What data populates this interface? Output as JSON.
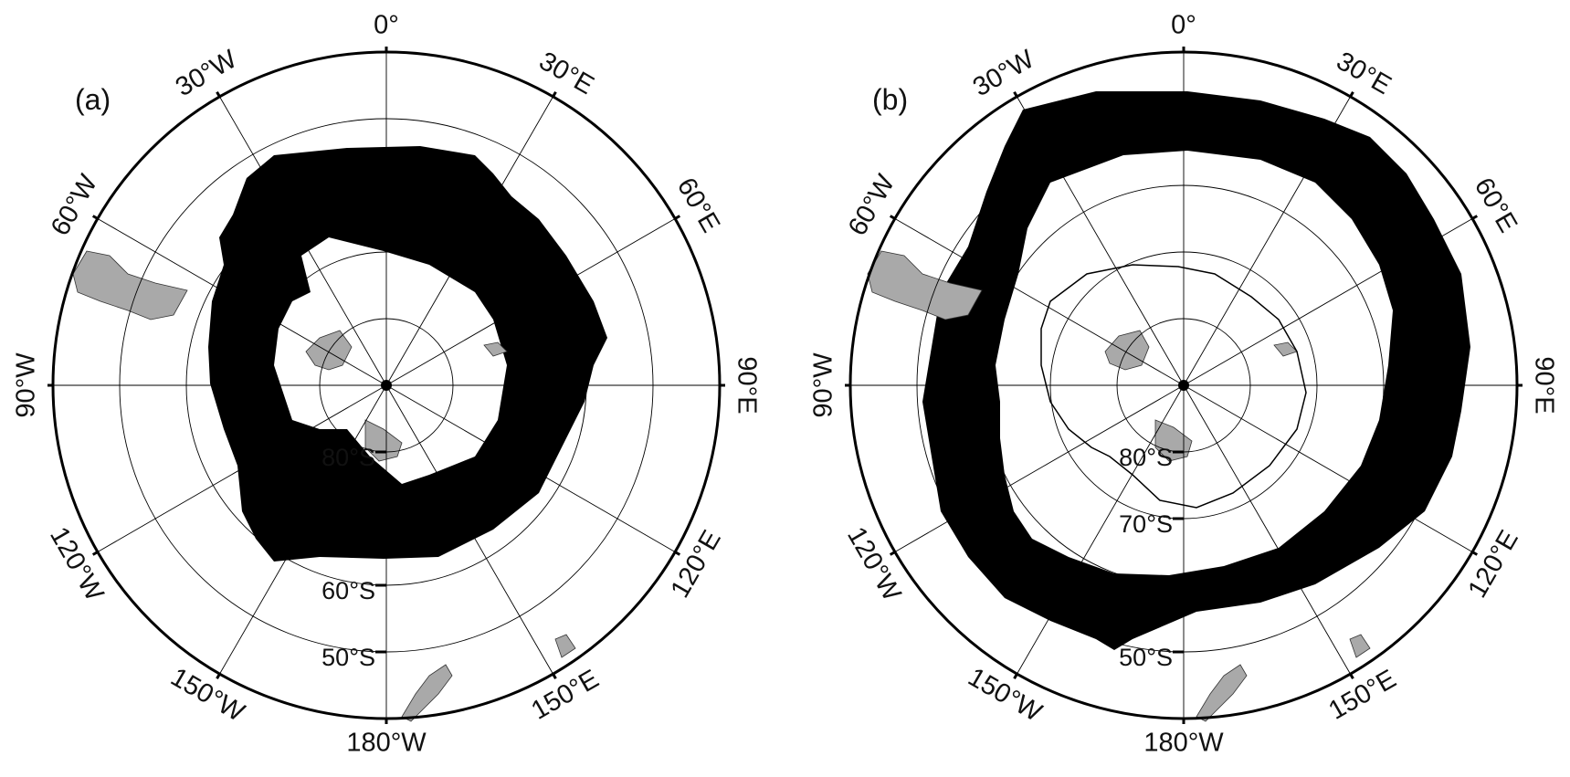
{
  "panels": [
    {
      "id": "a",
      "label": "(a)",
      "longitude_labels": {
        "0": "0°",
        "30E": "30°E",
        "60E": "60°E",
        "90E": "90°E",
        "120E": "120°E",
        "150E": "150°E",
        "180": "180°W",
        "150W": "150°W",
        "120W": "120°W",
        "90W": "90°W",
        "60W": "60°W",
        "30W": "30°W"
      },
      "latitude_labels": {
        "80S": "80°S",
        "60S": "60°S",
        "50S": "50°S"
      },
      "black_band": {
        "inner_edge_lat_deg_south": -72,
        "outer_edge_lat_deg_south": -58
      }
    },
    {
      "id": "b",
      "label": "(b)",
      "longitude_labels": {
        "0": "0°",
        "30E": "30°E",
        "60E": "60°E",
        "90E": "90°E",
        "120E": "120°E",
        "150E": "150°E",
        "180": "180°W",
        "150W": "150°W",
        "120W": "120°W",
        "90W": "90°W",
        "60W": "60°W",
        "30W": "30°W"
      },
      "latitude_labels": {
        "80S": "80°S",
        "70S": "70°S",
        "50S": "50°S"
      },
      "black_band": {
        "inner_edge_lat_deg_south": -63,
        "outer_edge_lat_deg_south": -52
      }
    }
  ],
  "colors": {
    "band": "#000000",
    "land": "#a9a9a9",
    "ocean": "#ffffff",
    "grid": "#000000"
  }
}
